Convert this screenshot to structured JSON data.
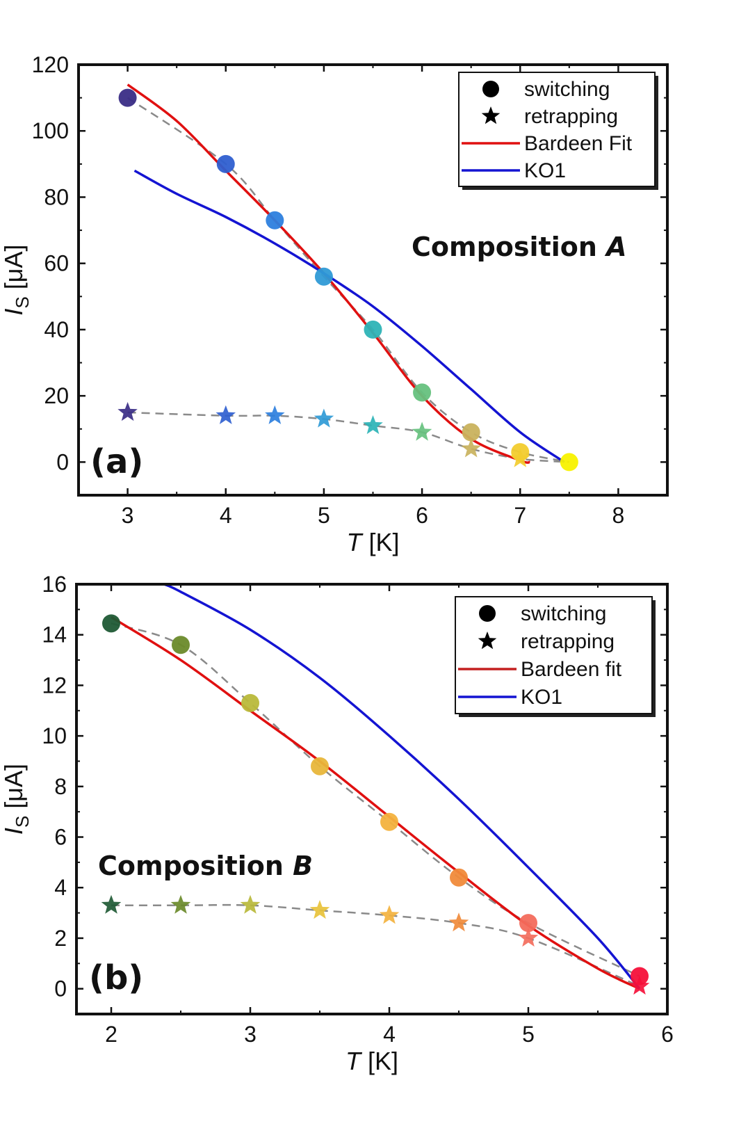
{
  "chart_data": [
    {
      "type": "scatter",
      "panel_label": "(a)",
      "annotation": "Composition ",
      "annotation_italic": "A",
      "xlabel": "T",
      "xlabel_unit": " [K]",
      "ylabel": "I",
      "ylabel_sub": "S",
      "ylabel_unit": " [μA]",
      "xlim": [
        2.5,
        8.5
      ],
      "ylim": [
        -10,
        120
      ],
      "xticks": [
        3,
        4,
        5,
        6,
        7,
        8
      ],
      "yticks": [
        0,
        20,
        40,
        60,
        80,
        100,
        120
      ],
      "legend_position": "top-right",
      "legend": [
        {
          "label": "switching",
          "kind": "circle"
        },
        {
          "label": "retrapping",
          "kind": "star"
        },
        {
          "label": "Bardeen Fit",
          "kind": "line",
          "color": "#e01010"
        },
        {
          "label": "KO1",
          "kind": "line",
          "color": "#1414d2"
        }
      ],
      "series": [
        {
          "name": "switching",
          "kind": "circle",
          "x": [
            3,
            4,
            4.5,
            5,
            5.5,
            6,
            6.5,
            7,
            7.5
          ],
          "y": [
            110,
            90,
            73,
            56,
            40,
            21,
            9,
            3,
            0
          ],
          "colors": [
            "#3a2d86",
            "#2f5fd0",
            "#2d7fde",
            "#2f9ad6",
            "#2db3b6",
            "#66c17e",
            "#c9b25d",
            "#f2cc2e",
            "#f8f200"
          ]
        },
        {
          "name": "retrapping",
          "kind": "star",
          "x": [
            3,
            4,
            4.5,
            5,
            5.5,
            6,
            6.5,
            7
          ],
          "y": [
            15,
            14,
            14,
            13,
            11,
            9,
            4,
            1
          ],
          "colors": [
            "#3a2d86",
            "#2f5fd0",
            "#2d7fde",
            "#2f9ad6",
            "#2db3b6",
            "#66c17e",
            "#c9b25d",
            "#f2cc2e"
          ]
        },
        {
          "name": "Bardeen Fit",
          "kind": "line",
          "color": "#e01010",
          "x": [
            3,
            3.5,
            4,
            4.5,
            5,
            5.5,
            6,
            6.5,
            7,
            7.1
          ],
          "y": [
            114,
            103,
            88,
            73,
            57,
            39,
            20,
            7,
            0.5,
            0
          ]
        },
        {
          "name": "KO1",
          "kind": "line",
          "color": "#1414d2",
          "x": [
            3.07,
            3.5,
            4,
            4.5,
            5,
            5.5,
            6,
            6.5,
            7,
            7.45
          ],
          "y": [
            88,
            81,
            74,
            66,
            57,
            47,
            35,
            22,
            9,
            0
          ]
        },
        {
          "kind": "guide",
          "color": "#8a8a8a",
          "x": [
            3,
            4,
            4.5,
            5,
            5.5,
            6,
            6.5,
            7,
            7.5
          ],
          "y": [
            110,
            90,
            73,
            56,
            40,
            21,
            9,
            3,
            0
          ]
        },
        {
          "kind": "guide",
          "color": "#8a8a8a",
          "x": [
            3,
            4,
            4.5,
            5,
            5.5,
            6,
            6.5,
            7,
            7.5
          ],
          "y": [
            15,
            14,
            14,
            13,
            11,
            9,
            4,
            1,
            0
          ]
        }
      ]
    },
    {
      "type": "scatter",
      "panel_label": "(b)",
      "annotation": "Composition ",
      "annotation_italic": "B",
      "xlabel": "T",
      "xlabel_unit": " [K]",
      "ylabel": "I",
      "ylabel_sub": "S",
      "ylabel_unit": " [μA]",
      "xlim": [
        1.75,
        6
      ],
      "ylim": [
        -1,
        16
      ],
      "xticks": [
        2,
        3,
        4,
        5,
        6
      ],
      "yticks": [
        0,
        2,
        4,
        6,
        8,
        10,
        12,
        14,
        16
      ],
      "legend_position": "top-right",
      "legend": [
        {
          "label": "switching",
          "kind": "circle"
        },
        {
          "label": "retrapping",
          "kind": "star"
        },
        {
          "label": "Bardeen fit",
          "kind": "line",
          "color": "#c42020"
        },
        {
          "label": "KO1",
          "kind": "line",
          "color": "#1414d2"
        }
      ],
      "series": [
        {
          "name": "switching",
          "kind": "circle",
          "x": [
            2,
            2.5,
            3,
            3.5,
            4,
            4.5,
            5,
            5.8
          ],
          "y": [
            14.45,
            13.6,
            11.3,
            8.8,
            6.6,
            4.4,
            2.6,
            0.5
          ],
          "colors": [
            "#1f5a35",
            "#6a8a2a",
            "#b9b93a",
            "#e8b63a",
            "#f3b23e",
            "#f08a3a",
            "#f36c5c",
            "#f5103a"
          ]
        },
        {
          "name": "retrapping",
          "kind": "star",
          "x": [
            2,
            2.5,
            3,
            3.5,
            4,
            4.5,
            5,
            5.8
          ],
          "y": [
            3.3,
            3.3,
            3.3,
            3.1,
            2.9,
            2.6,
            2.0,
            0.1
          ],
          "colors": [
            "#1f5a35",
            "#6a8a2a",
            "#b9b93a",
            "#e8c23a",
            "#f3b23e",
            "#f08a3a",
            "#f36c5c",
            "#f5103a"
          ]
        },
        {
          "name": "Bardeen fit",
          "kind": "line",
          "color": "#e01010",
          "x": [
            2,
            2.5,
            3,
            3.5,
            4,
            4.5,
            5,
            5.5,
            5.8
          ],
          "y": [
            14.7,
            13.0,
            11.0,
            9.0,
            6.8,
            4.6,
            2.5,
            0.8,
            0
          ]
        },
        {
          "name": "KO1",
          "kind": "line",
          "color": "#1414d2",
          "x": [
            2.38,
            2.5,
            3,
            3.5,
            4,
            4.5,
            5,
            5.5,
            5.8
          ],
          "y": [
            16,
            15.7,
            14.2,
            12.3,
            10.0,
            7.5,
            4.8,
            2.0,
            0
          ]
        },
        {
          "kind": "guide",
          "color": "#8a8a8a",
          "x": [
            2,
            2.5,
            3,
            3.5,
            4,
            4.5,
            5,
            5.8
          ],
          "y": [
            14.45,
            13.6,
            11.3,
            8.8,
            6.6,
            4.4,
            2.6,
            0.5
          ]
        },
        {
          "kind": "guide",
          "color": "#8a8a8a",
          "x": [
            2,
            2.5,
            3,
            3.5,
            4,
            4.5,
            5,
            5.8
          ],
          "y": [
            3.3,
            3.3,
            3.3,
            3.1,
            2.9,
            2.6,
            2.0,
            0.1
          ]
        }
      ]
    }
  ]
}
